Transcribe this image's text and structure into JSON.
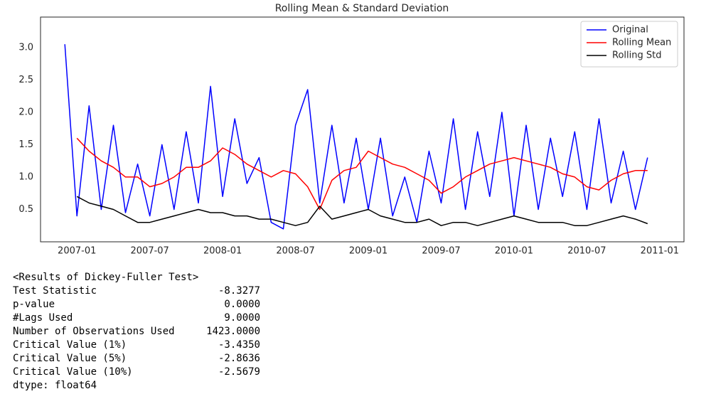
{
  "chart_data": {
    "type": "line",
    "title": "Rolling Mean & Standard Deviation",
    "x": [
      "2006-12",
      "2007-01",
      "2007-02",
      "2007-03",
      "2007-04",
      "2007-05",
      "2007-06",
      "2007-07",
      "2007-08",
      "2007-09",
      "2007-10",
      "2007-11",
      "2007-12",
      "2008-01",
      "2008-02",
      "2008-03",
      "2008-04",
      "2008-05",
      "2008-06",
      "2008-07",
      "2008-08",
      "2008-09",
      "2008-10",
      "2008-11",
      "2008-12",
      "2009-01",
      "2009-02",
      "2009-03",
      "2009-04",
      "2009-05",
      "2009-06",
      "2009-07",
      "2009-08",
      "2009-09",
      "2009-10",
      "2009-11",
      "2009-12",
      "2010-01",
      "2010-02",
      "2010-03",
      "2010-04",
      "2010-05",
      "2010-06",
      "2010-07",
      "2010-08",
      "2010-09",
      "2010-10",
      "2010-11",
      "2010-12"
    ],
    "series": [
      {
        "name": "Original",
        "color": "#0000ff",
        "values": [
          3.05,
          0.4,
          2.1,
          0.5,
          1.8,
          0.45,
          1.2,
          0.4,
          1.5,
          0.5,
          1.7,
          0.6,
          2.4,
          0.7,
          1.9,
          0.9,
          1.3,
          0.3,
          0.2,
          1.8,
          2.35,
          0.6,
          1.8,
          0.6,
          1.6,
          0.5,
          1.6,
          0.4,
          1.0,
          0.3,
          1.4,
          0.6,
          1.9,
          0.5,
          1.7,
          0.7,
          2.0,
          0.4,
          1.8,
          0.5,
          1.6,
          0.7,
          1.7,
          0.5,
          1.9,
          0.6,
          1.4,
          0.5,
          1.3
        ]
      },
      {
        "name": "Rolling Mean",
        "color": "#ff0000",
        "values": [
          null,
          1.6,
          1.4,
          1.25,
          1.15,
          1.0,
          1.0,
          0.85,
          0.9,
          1.0,
          1.15,
          1.15,
          1.25,
          1.45,
          1.35,
          1.2,
          1.1,
          1.0,
          1.1,
          1.05,
          0.85,
          0.5,
          0.95,
          1.1,
          1.15,
          1.4,
          1.3,
          1.2,
          1.15,
          1.05,
          0.95,
          0.75,
          0.85,
          1.0,
          1.1,
          1.2,
          1.25,
          1.3,
          1.25,
          1.2,
          1.15,
          1.05,
          1.0,
          0.85,
          0.8,
          0.95,
          1.05,
          1.1,
          1.1
        ]
      },
      {
        "name": "Rolling Std",
        "color": "#000000",
        "values": [
          null,
          0.7,
          0.6,
          0.55,
          0.5,
          0.4,
          0.3,
          0.3,
          0.35,
          0.4,
          0.45,
          0.5,
          0.45,
          0.45,
          0.4,
          0.4,
          0.35,
          0.35,
          0.3,
          0.25,
          0.3,
          0.55,
          0.35,
          0.4,
          0.45,
          0.5,
          0.4,
          0.35,
          0.3,
          0.3,
          0.35,
          0.25,
          0.3,
          0.3,
          0.25,
          0.3,
          0.35,
          0.4,
          0.35,
          0.3,
          0.3,
          0.3,
          0.25,
          0.25,
          0.3,
          0.35,
          0.4,
          0.35,
          0.28
        ]
      }
    ],
    "xlim": [
      "2006-10",
      "2011-03"
    ],
    "xticks": [
      "2007-01",
      "2007-07",
      "2008-01",
      "2008-07",
      "2009-01",
      "2009-07",
      "2010-01",
      "2010-07",
      "2011-01"
    ],
    "ylim": [
      0.0,
      3.47
    ],
    "yticks": [
      0.5,
      {
        "value": 1.0,
        "label": "1.0"
      },
      1.5,
      {
        "value": 2.0,
        "label": "2.0"
      },
      2.5,
      {
        "value": 3.0,
        "label": "3.0"
      }
    ],
    "grid": false,
    "legend": "upper right"
  },
  "test_results": {
    "header": "<Results of Dickey-Fuller Test>",
    "rows": [
      [
        "Test Statistic",
        "-8.3277"
      ],
      [
        "p-value",
        "0.0000"
      ],
      [
        "#Lags Used",
        "9.0000"
      ],
      [
        "Number of Observations Used",
        "1423.0000"
      ],
      [
        "Critical Value (1%)",
        "-3.4350"
      ],
      [
        "Critical Value (5%)",
        "-2.8636"
      ],
      [
        "Critical Value (10%)",
        "-2.5679"
      ]
    ],
    "dtype": "dtype: float64"
  }
}
